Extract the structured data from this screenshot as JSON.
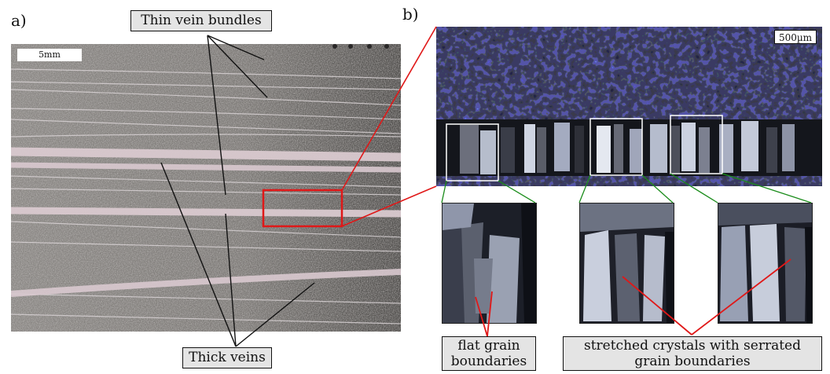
{
  "panels": {
    "a": {
      "letter": "a)",
      "scale": "5mm",
      "labels": {
        "thin": "Thin vein bundles",
        "thick": "Thick veins"
      }
    },
    "b": {
      "letter": "b)",
      "scale": "500µm",
      "labels": {
        "flat": "flat grain boundaries",
        "flat_line1": "flat grain",
        "flat_line2": "boundaries",
        "stretched_line1": "stretched crystals with serrated",
        "stretched_line2": "grain boundaries"
      }
    }
  },
  "colors": {
    "highlight_box": "#e01818",
    "zoom_lines_green": "#1a8c1a",
    "annotation_red": "#e01818",
    "label_bg": "#e4e4e4"
  }
}
